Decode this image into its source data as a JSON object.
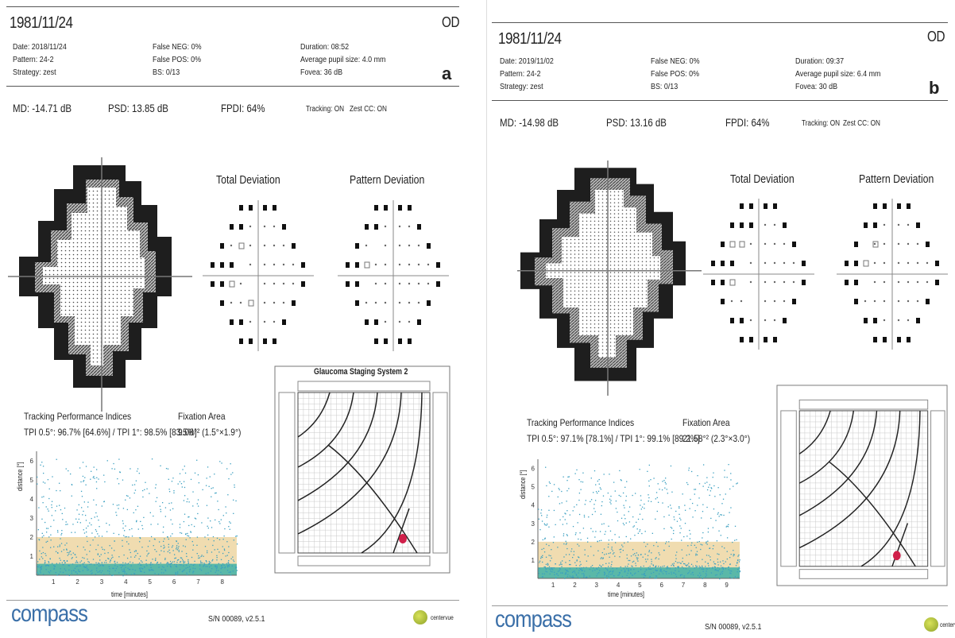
{
  "reports": [
    {
      "letter": "a",
      "patient_id": "1981/11/24",
      "eye": "OD",
      "date": "Date: 2018/11/24",
      "pattern": "Pattern: 24-2",
      "strategy": "Strategy: zest",
      "false_neg": "False NEG: 0%",
      "false_pos": "False POS: 0%",
      "bs": "BS: 0/13",
      "duration": "Duration: 08:52",
      "pupil": "Average pupil size: 4.0 mm",
      "fovea": "Fovea: 36 dB",
      "md": "MD: -14.71 dB",
      "psd": "PSD: 13.85 dB",
      "fpdi": "FPDI: 64%",
      "tracking": "Tracking: ON",
      "zest_cc": "Zest CC: ON",
      "total_deviation": "Total Deviation",
      "pattern_deviation": "Pattern Deviation",
      "tpi_title": "Tracking Performance Indices",
      "tpi_values": "TPI 0.5°: 96.7% [64.6%] / TPI 1°: 98.5% [83.5%]",
      "fix_title": "Fixation Area",
      "fix_value": "9.08°² (1.5°×1.9°)",
      "gss_title": "Glaucoma Staging System 2",
      "time_label": "time [minutes]",
      "distance_label": "distance [°]",
      "time_ticks": [
        "1",
        "2",
        "3",
        "4",
        "5",
        "6",
        "7",
        "8"
      ],
      "brand": "compass",
      "serial": "S/N 00089, v2.5.1",
      "vendor": "centervue"
    },
    {
      "letter": "b",
      "patient_id": "1981/11/24",
      "eye": "OD",
      "date": "Date: 2019/11/02",
      "pattern": "Pattern: 24-2",
      "strategy": "Strategy: zest",
      "false_neg": "False NEG: 0%",
      "false_pos": "False POS: 0%",
      "bs": "BS: 0/13",
      "duration": "Duration: 09:37",
      "pupil": "Average pupil size: 6.4 mm",
      "fovea": "Fovea: 30 dB",
      "md": "MD: -14.98 dB",
      "psd": "PSD: 13.16 dB",
      "fpdi": "FPDI: 64%",
      "tracking": "Tracking: ON",
      "zest_cc": "Zest CC: ON",
      "total_deviation": "Total Deviation",
      "pattern_deviation": "Pattern Deviation",
      "tpi_title": "Tracking Performance Indices",
      "tpi_values": "TPI 0.5°: 97.1% [78.1%] / TPI 1°: 99.1% [89.2%]",
      "fix_title": "Fixation Area",
      "fix_value": "21.58°² (2.3°×3.0°)",
      "gss_title": "",
      "time_label": "time [minutes]",
      "distance_label": "distance [°]",
      "time_ticks": [
        "1",
        "2",
        "3",
        "4",
        "5",
        "6",
        "7",
        "8",
        "9"
      ],
      "brand": "compass",
      "serial": "S/N 00089, v2.5.1",
      "vendor": "centervue"
    }
  ],
  "colors": {
    "tracking_band": "#f0dcb0",
    "tracking_points": "#3a9fc0",
    "tracking_base": "#5ab8a8",
    "gss_marker": "#d0204a",
    "brand": "#3a6fa8"
  }
}
